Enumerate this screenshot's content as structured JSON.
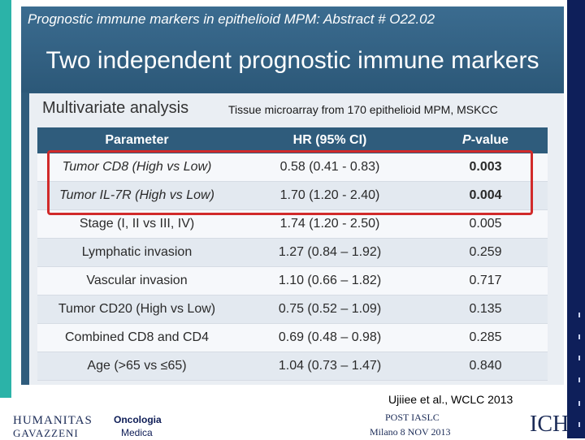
{
  "header": {
    "abstract": "Prognostic immune markers in epithelioid MPM: Abstract # O22.02",
    "title": "Two independent prognostic immune markers"
  },
  "panel": {
    "title": "Multivariate analysis",
    "source": "Tissue microarray from 170 epithelioid MPM, MSKCC"
  },
  "table": {
    "headers": [
      "Parameter",
      "HR (95% CI)",
      "-value"
    ],
    "header_p_italic": "P",
    "rows": [
      [
        "Tumor CD8 (High vs Low)",
        "0.58 (0.41 - 0.83)",
        "0.003"
      ],
      [
        "Tumor IL-7R (High vs Low)",
        "1.70 (1.20 - 2.40)",
        "0.004"
      ],
      [
        "Stage (I, II vs III, IV)",
        "1.74 (1.20 - 2.50)",
        "0.005"
      ],
      [
        "Lymphatic invasion",
        "1.27 (0.84 – 1.92)",
        "0.259"
      ],
      [
        "Vascular invasion",
        "1.10 (0.66 – 1.82)",
        "0.717"
      ],
      [
        "Tumor CD20 (High vs Low)",
        "0.75 (0.52 – 1.09)",
        "0.135"
      ],
      [
        "Combined CD8 and CD4",
        "0.69 (0.48 – 0.98)",
        "0.285"
      ],
      [
        "Age (>65 vs ≤65)",
        "1.04 (0.73 – 1.47)",
        "0.840"
      ]
    ]
  },
  "citation": "Ujiiee et al., WCLC 2013",
  "footer": {
    "humanitas_line1": "HUMANITAS",
    "humanitas_line2": "GAVAZZENI",
    "oncologia_line1": "Oncologia",
    "oncologia_line2": "Medica",
    "post_line1": "POST IASLC",
    "post_line2": "Milano 8 NOV 2013",
    "logo": "ICH"
  },
  "colors": {
    "accent_bar": "#2bb3a8",
    "slide_blue": "#2f5c7c",
    "highlight_red": "#d12a2a",
    "right_bar": "#0e1f5a"
  }
}
